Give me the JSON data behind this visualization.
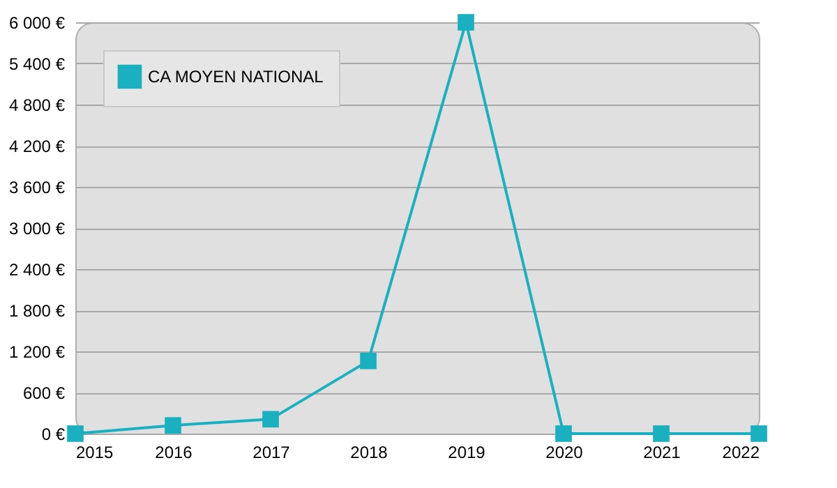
{
  "chart_data": {
    "type": "line",
    "x": [
      2015,
      2016,
      2017,
      2018,
      2019,
      2020,
      2021,
      2022
    ],
    "series": [
      {
        "name": "CA MOYEN NATIONAL",
        "color": "#1ab0bf",
        "values": [
          0,
          120,
          210,
          1060,
          6000,
          0,
          0,
          0
        ]
      }
    ],
    "xlim": [
      2015,
      2022
    ],
    "xticks": [
      2015,
      2016,
      2017,
      2018,
      2019,
      2020,
      2021,
      2022
    ],
    "ylim": [
      0,
      6000
    ],
    "yticks": [
      {
        "value": 0,
        "label": "0 €"
      },
      {
        "value": 600,
        "label": "600 €"
      },
      {
        "value": 1200,
        "label": "1 200 €"
      },
      {
        "value": 1800,
        "label": "1 800 €"
      },
      {
        "value": 2400,
        "label": "2 400 €"
      },
      {
        "value": 3000,
        "label": "3 000 €"
      },
      {
        "value": 3600,
        "label": "3 600 €"
      },
      {
        "value": 4200,
        "label": "4 200 €"
      },
      {
        "value": 4800,
        "label": "4 800 €"
      },
      {
        "value": 5400,
        "label": "5 400 €"
      },
      {
        "value": 6000,
        "label": "6 000 €"
      }
    ],
    "grid": "y",
    "legend": "top left",
    "marker": "square",
    "line_style": "solid"
  }
}
